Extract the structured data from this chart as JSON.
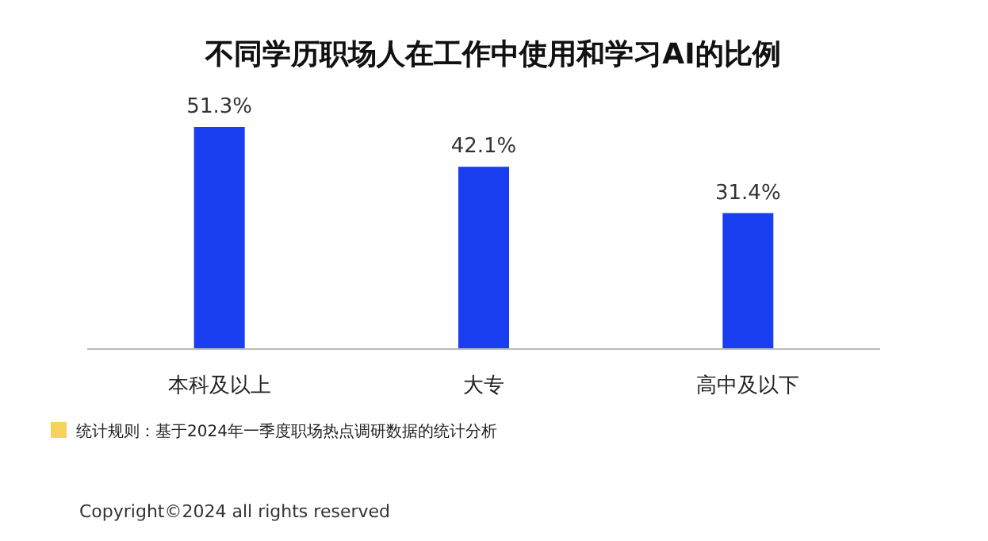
{
  "chart_data": {
    "type": "bar",
    "title": "不同学历职场人在工作中使用和学习AI的比例",
    "categories": [
      "本科及以上",
      "大专",
      "高中及以下"
    ],
    "values": [
      51.3,
      42.1,
      31.4
    ],
    "value_labels": [
      "51.3%",
      "42.1%",
      "31.4%"
    ],
    "color": "#1a3ff0",
    "annotations": [
      "统计规则：基于2024年一季度职场热点调研数据的统计分析",
      "Copyright©2024 all rights reserved"
    ]
  }
}
